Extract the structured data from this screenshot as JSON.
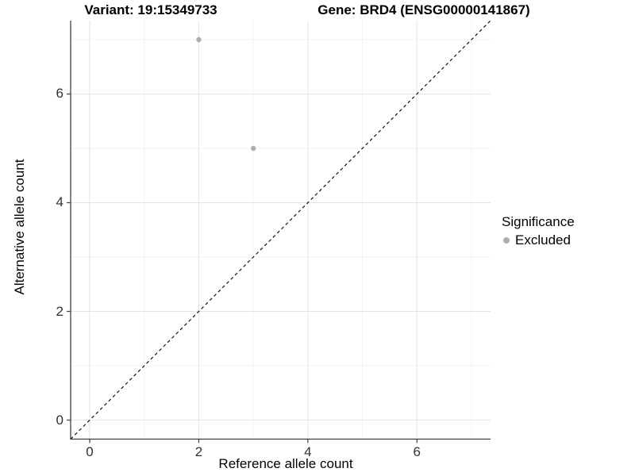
{
  "titles": {
    "variant": "Variant: 19:15349733",
    "gene": "Gene: BRD4 (ENSG00000141867)"
  },
  "legend": {
    "title": "Significance",
    "items": [
      {
        "label": "Excluded",
        "color": "#aeaeae"
      }
    ]
  },
  "chart_data": {
    "type": "scatter",
    "title": "Variant: 19:15349733 — Gene: BRD4 (ENSG00000141867)",
    "xlabel": "Reference allele count",
    "ylabel": "Alternative allele count",
    "xlim": [
      -0.35,
      7.35
    ],
    "ylim": [
      -0.35,
      7.35
    ],
    "x_major_ticks": [
      0,
      2,
      4,
      6
    ],
    "x_minor_ticks": [
      1,
      3,
      5,
      7
    ],
    "y_major_ticks": [
      0,
      2,
      4,
      6
    ],
    "y_minor_ticks": [
      1,
      3,
      5,
      7
    ],
    "grid": true,
    "legend_position": "right",
    "series": [
      {
        "name": "Excluded",
        "color": "#aeaeae",
        "points": [
          {
            "x": 2,
            "y": 7
          },
          {
            "x": 3,
            "y": 5
          }
        ]
      }
    ],
    "reference_line": {
      "type": "identity",
      "style": "dashed",
      "color": "#000000"
    }
  },
  "colors": {
    "grid_major": "#e4e4e4",
    "grid_minor": "#f2f2f2",
    "axis_line": "#3f3f3f",
    "tick_mark": "#3f3f3f",
    "point": "#aeaeae",
    "dashed_line": "#000000",
    "background": "#ffffff"
  }
}
